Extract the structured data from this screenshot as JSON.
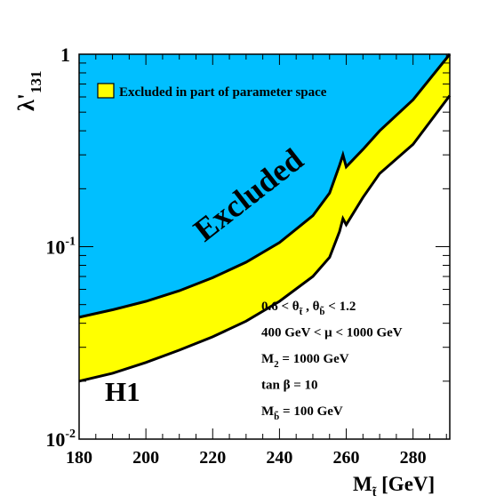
{
  "chart_data": {
    "type": "area",
    "xlabel": "M",
    "xlabel_sub": "t̃",
    "xlabel_unit": " [GeV]",
    "ylabel_base": "λ'",
    "ylabel_sub": "131",
    "xlim": [
      180,
      291
    ],
    "ylim": [
      0.01,
      1
    ],
    "yscale": "log",
    "x_ticks": [
      180,
      200,
      220,
      240,
      260,
      280
    ],
    "y_ticks": [
      {
        "value": 1,
        "base": "1",
        "exp": ""
      },
      {
        "value": 0.1,
        "base": "10",
        "exp": "-1"
      },
      {
        "value": 0.01,
        "base": "10",
        "exp": "-2"
      }
    ],
    "series": [
      {
        "name": "Excluded",
        "color": "#00bfff",
        "x": [
          180,
          190,
          200,
          210,
          220,
          230,
          240,
          250,
          255,
          258,
          259,
          260,
          265,
          270,
          280,
          291
        ],
        "y": [
          0.043,
          0.047,
          0.052,
          0.059,
          0.069,
          0.083,
          0.105,
          0.145,
          0.19,
          0.265,
          0.3,
          0.26,
          0.32,
          0.4,
          0.58,
          1.0
        ]
      },
      {
        "name": "Excluded in part of parameter space",
        "color": "#ffff00",
        "x": [
          180,
          190,
          200,
          210,
          220,
          230,
          240,
          250,
          255,
          258,
          259,
          260,
          265,
          270,
          280,
          291
        ],
        "y": [
          0.02,
          0.022,
          0.025,
          0.029,
          0.034,
          0.041,
          0.052,
          0.07,
          0.088,
          0.12,
          0.14,
          0.13,
          0.18,
          0.24,
          0.34,
          0.61
        ]
      }
    ],
    "legend": {
      "label": "Excluded in part of parameter space",
      "position": "top-left"
    },
    "annotations": {
      "excluded_label": "Excluded",
      "experiment": "H1",
      "params": [
        {
          "text": "0.6 < θ",
          "sub": "t̃",
          "text2": " , θ",
          "sub2": "b̃",
          "text3": " < 1.2"
        },
        {
          "text": "400 GeV < μ < 1000 GeV",
          "sub": "",
          "text2": "",
          "sub2": "",
          "text3": ""
        },
        {
          "text": "M",
          "sub": "2",
          "text2": " = 1000 GeV",
          "sub2": "",
          "text3": ""
        },
        {
          "text": "tan β = 10",
          "sub": "",
          "text2": "",
          "sub2": "",
          "text3": ""
        },
        {
          "text": "M",
          "sub": "b̃",
          "text2": " = 100 GeV",
          "sub2": "",
          "text3": ""
        }
      ]
    }
  }
}
